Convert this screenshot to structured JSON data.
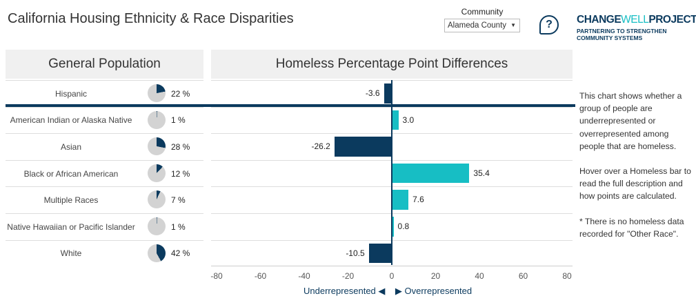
{
  "title": "California Housing Ethnicity & Race Disparities",
  "community": {
    "label": "Community",
    "selected": "Alameda County"
  },
  "help_icon": "question-bubble-icon",
  "logo": {
    "part1": "CHANGE",
    "part2": "WELL",
    "part3": "PROJECT",
    "tagline": "PARTNERING TO STRENGTHEN COMMUNITY SYSTEMS"
  },
  "colors": {
    "under": "#0b3a5e",
    "over": "#17bec4",
    "pie_base": "#d3d3d3"
  },
  "left_header": "General Population",
  "chart_data": {
    "type": "bar",
    "title": "Homeless Percentage Point Differences",
    "categories": [
      "Hispanic",
      "American Indian or Alaska Native",
      "Asian",
      "Black or African American",
      "Multiple Races",
      "Native Hawaiian or Pacific Islander",
      "White"
    ],
    "general_population_pct": [
      22,
      1,
      28,
      12,
      7,
      1,
      42
    ],
    "general_population_labels": [
      "22 %",
      "1 %",
      "28 %",
      "12 %",
      "7 %",
      "1 %",
      "42 %"
    ],
    "values": [
      -3.6,
      3.0,
      -26.2,
      35.4,
      7.6,
      0.8,
      -10.5
    ],
    "value_labels": [
      "-3.6",
      "3.0",
      "-26.2",
      "35.4",
      "7.6",
      "0.8",
      "-10.5"
    ],
    "xlim": [
      -80,
      80
    ],
    "xticks": [
      "-80",
      "-60",
      "-40",
      "-20",
      "0",
      "20",
      "40",
      "60",
      "80"
    ],
    "under_label": "Underrepresented",
    "over_label": "Overrepresented"
  },
  "note": [
    "This chart shows whether a group of people are underrepresented or overrepresented among people that are homeless.",
    "Hover over a Homeless bar to read the full description and how points are calculated.",
    "* There is no homeless data recorded for \"Other Race\"."
  ]
}
